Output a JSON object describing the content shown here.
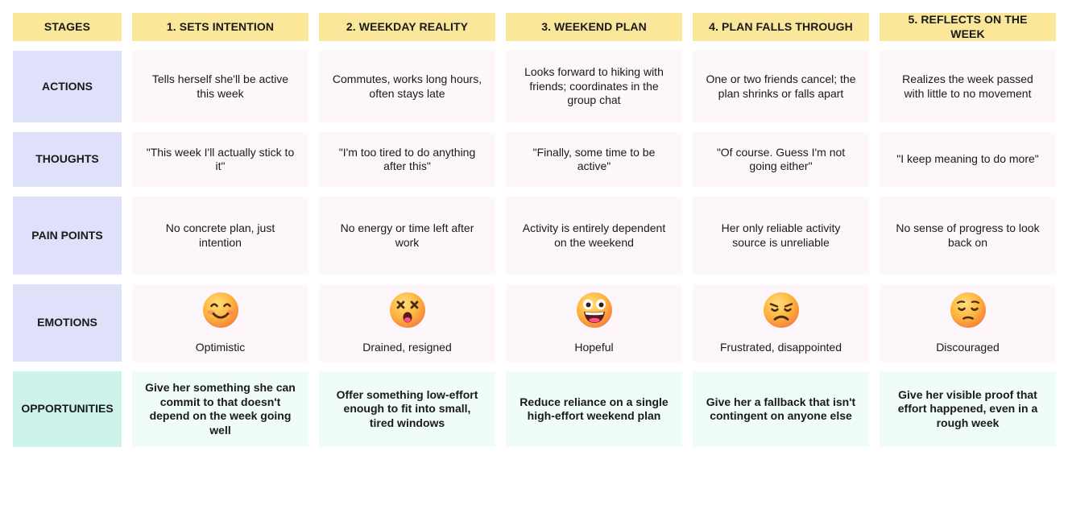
{
  "stages": {
    "header": "STAGES",
    "columns": [
      "1. SETS INTENTION",
      "2. WEEKDAY REALITY",
      "3. WEEKEND PLAN",
      "4. PLAN FALLS THROUGH",
      "5. REFLECTS ON THE WEEK"
    ]
  },
  "rows": [
    {
      "label": "ACTIONS",
      "cells": [
        "Tells herself she'll be active this week",
        "Commutes, works long hours, often stays late",
        "Looks forward to hiking with friends; coordinates in the group chat",
        "One or two friends cancel; the plan shrinks or falls apart",
        "Realizes the week passed with little to no movement"
      ]
    },
    {
      "label": "THOUGHTS",
      "cells": [
        "\"This week I'll actually stick to it\"",
        "\"I'm too tired to do anything after this\"",
        "\"Finally, some time to be active\"",
        "\"Of course. Guess I'm not going either\"",
        "\"I keep meaning to do more\""
      ]
    },
    {
      "label": "PAIN POINTS",
      "cells": [
        "No concrete plan, just intention",
        "No energy or time left after work",
        "Activity is entirely dependent on the weekend",
        "Her only reliable activity source is unreliable",
        "No sense of progress to look back on"
      ]
    }
  ],
  "emotions": {
    "label": "EMOTIONS",
    "cells": [
      {
        "icon": "smiling-face-icon",
        "text": "Optimistic"
      },
      {
        "icon": "dizzy-face-icon",
        "text": "Drained, resigned"
      },
      {
        "icon": "grinning-face-icon",
        "text": "Hopeful"
      },
      {
        "icon": "frowning-face-icon",
        "text": "Frustrated, disappointed"
      },
      {
        "icon": "pensive-face-icon",
        "text": "Discouraged"
      }
    ]
  },
  "opportunities": {
    "label": "OPPORTUNITIES",
    "cells": [
      "Give her something she can commit to that doesn't depend on the week going well",
      "Offer something low-effort enough to fit into small, tired windows",
      "Reduce reliance on a single high-effort weekend plan",
      "Give her a fallback that isn't contingent on anyone else",
      "Give her visible proof that effort happened, even in a rough week"
    ]
  },
  "colors": {
    "header": "#fbe79a",
    "label": "#dfe1fb",
    "label_opportunity": "#cdf3ea",
    "cell": "#fdf6fa",
    "cell_opportunity": "#effcf8",
    "emoji_face": "#fbb13c"
  }
}
